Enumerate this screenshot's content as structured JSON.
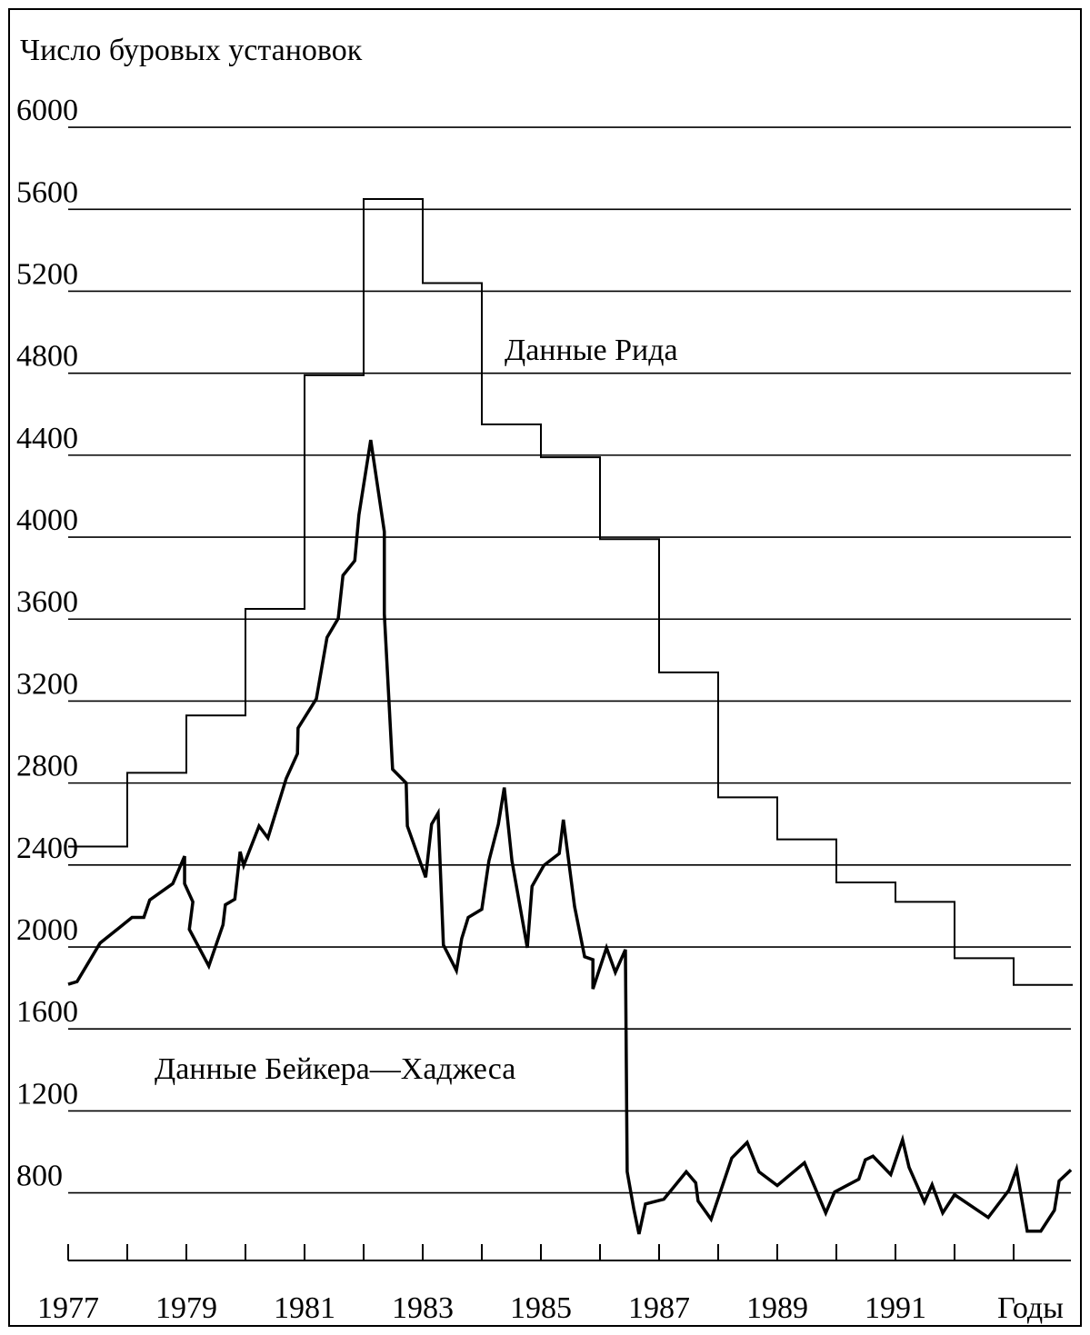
{
  "chart_data": {
    "type": "line",
    "y_label": "Число буровых установок",
    "x_label": "Годы",
    "xlim": [
      1977,
      1994
    ],
    "xticks": [
      1977,
      1979,
      1981,
      1983,
      1985,
      1987,
      1989,
      1991
    ],
    "minor_xticks": [
      1978,
      1980,
      1982,
      1984,
      1986,
      1988,
      1990,
      1992,
      1993
    ],
    "ylim": [
      470,
      6200
    ],
    "yticks": [
      800,
      1200,
      1600,
      2000,
      2400,
      2800,
      3200,
      3600,
      4000,
      4400,
      4800,
      5200,
      5600,
      6000
    ],
    "grid": true,
    "series": [
      {
        "name": "Данные Рида",
        "color": "#000000",
        "step": "post",
        "x": [
          1977,
          1978,
          1979,
          1980,
          1981,
          1982,
          1983,
          1984,
          1985,
          1986,
          1987,
          1988,
          1989,
          1990,
          1991,
          1992,
          1993
        ],
        "values": [
          2490,
          2850,
          3130,
          3650,
          4790,
          5650,
          5240,
          4550,
          4390,
          3990,
          3340,
          2730,
          2525,
          2315,
          2220,
          1945,
          1815
        ]
      },
      {
        "name": "Данные Бейкера—Хаджеса",
        "color": "#000000",
        "x": [
          1977.0,
          1977.15,
          1977.54,
          1977.77,
          1978.08,
          1978.28,
          1978.38,
          1978.77,
          1978.97,
          1978.97,
          1979.11,
          1979.05,
          1979.38,
          1979.62,
          1979.66,
          1979.82,
          1979.91,
          1979.97,
          1980.23,
          1980.38,
          1980.69,
          1980.88,
          1980.89,
          1981.2,
          1981.38,
          1981.57,
          1981.65,
          1981.85,
          1981.92,
          1982.12,
          1982.35,
          1982.35,
          1982.49,
          1982.72,
          1982.74,
          1983.05,
          1983.15,
          1983.26,
          1983.35,
          1983.57,
          1983.66,
          1983.77,
          1984.0,
          1984.12,
          1984.28,
          1984.38,
          1984.51,
          1984.77,
          1984.85,
          1985.05,
          1985.31,
          1985.38,
          1985.57,
          1985.74,
          1985.88,
          1985.88,
          1986.11,
          1986.26,
          1986.43,
          1986.46,
          1986.57,
          1986.66,
          1986.77,
          1987.08,
          1987.46,
          1987.62,
          1987.66,
          1987.88,
          1988.23,
          1988.49,
          1988.69,
          1989.0,
          1989.46,
          1989.82,
          1989.97,
          1990.38,
          1990.49,
          1990.62,
          1990.92,
          1991.12,
          1991.23,
          1991.49,
          1991.62,
          1991.8,
          1992.0,
          1992.57,
          1992.92,
          1993.05,
          1993.23,
          1993.46,
          1993.69,
          1993.77,
          1993.97
        ],
        "values": [
          1818,
          1831,
          2019,
          2072,
          2144,
          2144,
          2229,
          2309,
          2443,
          2309,
          2220,
          2086,
          1907,
          2108,
          2206,
          2233,
          2465,
          2398,
          2590,
          2532,
          2822,
          2943,
          3068,
          3211,
          3510,
          3603,
          3813,
          3885,
          4108,
          4474,
          4027,
          3626,
          2867,
          2800,
          2590,
          2340,
          2599,
          2653,
          2010,
          1885,
          2041,
          2144,
          2184,
          2420,
          2599,
          2778,
          2420,
          1996,
          2296,
          2398,
          2456,
          2621,
          2197,
          1952,
          1938,
          1795,
          1996,
          1876,
          1987,
          903,
          724,
          599,
          746,
          769,
          903,
          849,
          760,
          671,
          970,
          1046,
          903,
          836,
          947,
          702,
          804,
          867,
          961,
          979,
          889,
          1059,
          925,
          755,
          840,
          702,
          791,
          680,
          813,
          916,
          613,
          613,
          715,
          858,
          912
        ]
      }
    ]
  }
}
